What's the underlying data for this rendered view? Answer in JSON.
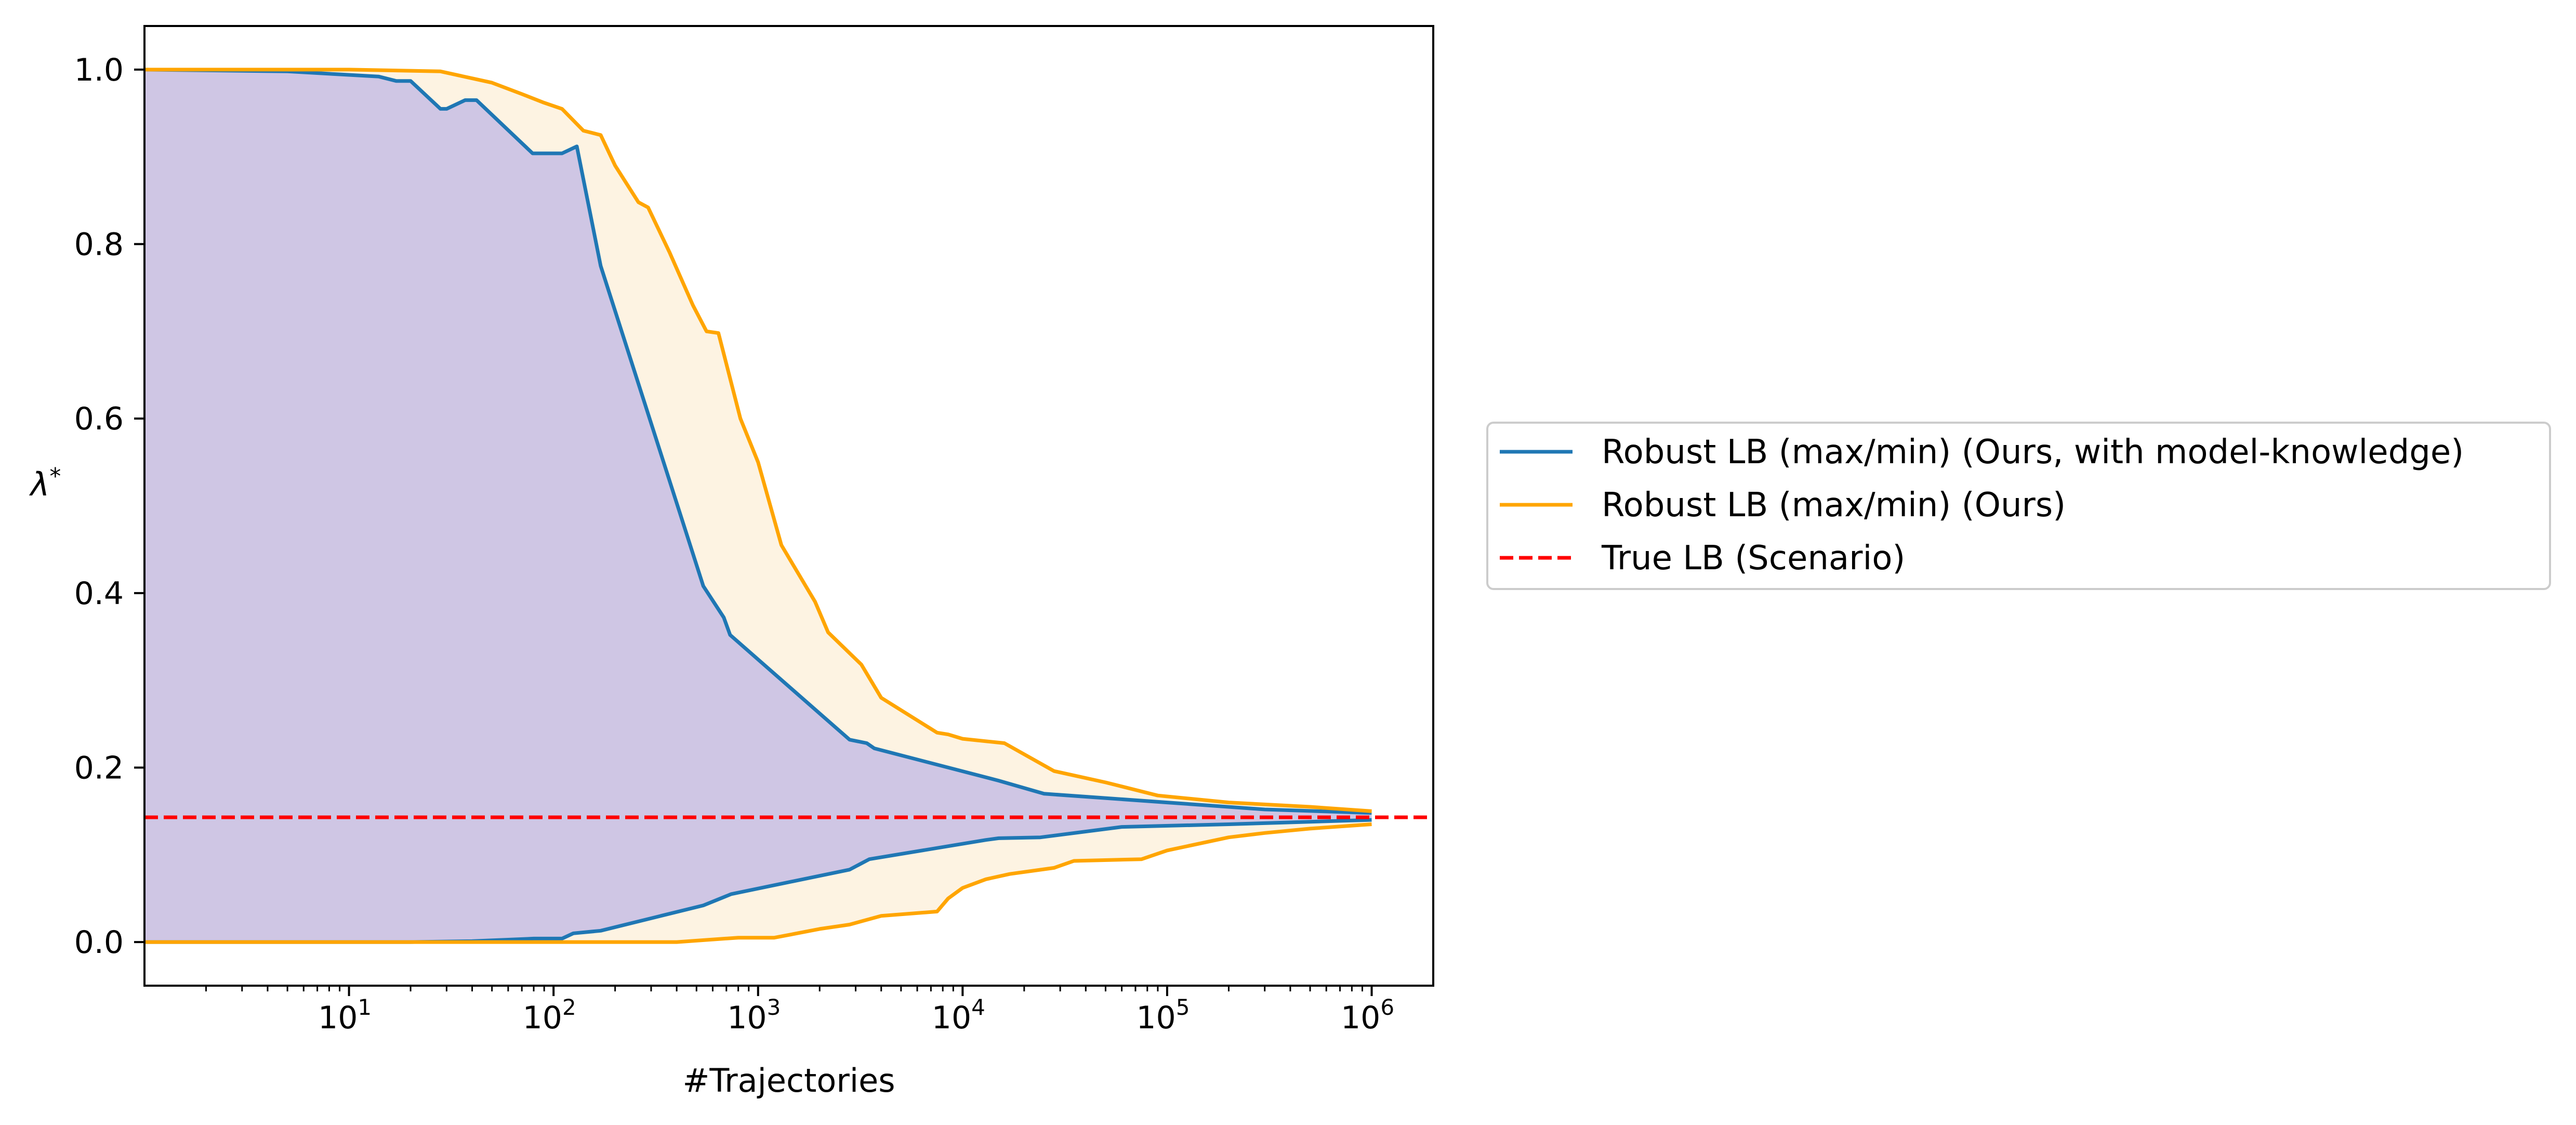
{
  "chart_data": {
    "type": "line",
    "title": "",
    "xlabel": "#Trajectories",
    "ylabel": "λ*",
    "xscale": "log",
    "xlim": [
      1.0,
      2000000
    ],
    "ylim": [
      -0.05,
      1.05
    ],
    "grid": false,
    "legend_position": "right-center, outside plot",
    "x_ticks": [
      {
        "value": 10,
        "base": "10",
        "exp": "1"
      },
      {
        "value": 100,
        "base": "10",
        "exp": "2"
      },
      {
        "value": 1000,
        "base": "10",
        "exp": "3"
      },
      {
        "value": 10000,
        "base": "10",
        "exp": "4"
      },
      {
        "value": 100000,
        "base": "10",
        "exp": "5"
      },
      {
        "value": 1000000,
        "base": "10",
        "exp": "6"
      }
    ],
    "y_ticks": [
      {
        "value": 0.0,
        "label": "0.0"
      },
      {
        "value": 0.2,
        "label": "0.2"
      },
      {
        "value": 0.4,
        "label": "0.4"
      },
      {
        "value": 0.6,
        "label": "0.6"
      },
      {
        "value": 0.8,
        "label": "0.8"
      },
      {
        "value": 1.0,
        "label": "1.0"
      }
    ],
    "series": [
      {
        "name": "Robust LB (max/min) (Ours, with model-knowledge)",
        "color": "#1f77b4",
        "fill": "#cfc6e4",
        "upper": [
          [
            1,
            1.0
          ],
          [
            5,
            0.998
          ],
          [
            14,
            0.992
          ],
          [
            17,
            0.987
          ],
          [
            20,
            0.987
          ],
          [
            28,
            0.955
          ],
          [
            30,
            0.955
          ],
          [
            37,
            0.965
          ],
          [
            42,
            0.965
          ],
          [
            79,
            0.904
          ],
          [
            110,
            0.904
          ],
          [
            130,
            0.912
          ],
          [
            170,
            0.775
          ],
          [
            540,
            0.408
          ],
          [
            680,
            0.372
          ],
          [
            730,
            0.352
          ],
          [
            2800,
            0.232
          ],
          [
            3400,
            0.228
          ],
          [
            3700,
            0.222
          ],
          [
            15000,
            0.185
          ],
          [
            25000,
            0.17
          ],
          [
            100000,
            0.16
          ],
          [
            300000,
            0.152
          ],
          [
            1000000,
            0.148
          ]
        ],
        "lower": [
          [
            1,
            0.0
          ],
          [
            20,
            0.0
          ],
          [
            40,
            0.001
          ],
          [
            80,
            0.004
          ],
          [
            110,
            0.004
          ],
          [
            125,
            0.01
          ],
          [
            170,
            0.013
          ],
          [
            540,
            0.042
          ],
          [
            740,
            0.055
          ],
          [
            2800,
            0.083
          ],
          [
            3500,
            0.095
          ],
          [
            13000,
            0.117
          ],
          [
            15000,
            0.119
          ],
          [
            24000,
            0.12
          ],
          [
            60000,
            0.132
          ],
          [
            200000,
            0.135
          ],
          [
            1000000,
            0.14
          ]
        ]
      },
      {
        "name": "Robust LB (max/min) (Ours)",
        "color": "#ffa500",
        "fill": "#fdf3e2",
        "upper": [
          [
            1,
            1.0
          ],
          [
            10,
            1.0
          ],
          [
            28,
            0.998
          ],
          [
            40,
            0.99
          ],
          [
            50,
            0.985
          ],
          [
            70,
            0.972
          ],
          [
            90,
            0.962
          ],
          [
            110,
            0.955
          ],
          [
            140,
            0.93
          ],
          [
            170,
            0.925
          ],
          [
            200,
            0.89
          ],
          [
            260,
            0.848
          ],
          [
            290,
            0.842
          ],
          [
            370,
            0.79
          ],
          [
            480,
            0.73
          ],
          [
            560,
            0.7
          ],
          [
            640,
            0.698
          ],
          [
            820,
            0.6
          ],
          [
            1000,
            0.55
          ],
          [
            1300,
            0.455
          ],
          [
            1900,
            0.39
          ],
          [
            2200,
            0.355
          ],
          [
            3200,
            0.318
          ],
          [
            4000,
            0.28
          ],
          [
            7500,
            0.24
          ],
          [
            8500,
            0.238
          ],
          [
            10000,
            0.233
          ],
          [
            16000,
            0.228
          ],
          [
            28000,
            0.196
          ],
          [
            50000,
            0.183
          ],
          [
            90000,
            0.168
          ],
          [
            200000,
            0.16
          ],
          [
            500000,
            0.155
          ],
          [
            1000000,
            0.15
          ]
        ],
        "lower": [
          [
            1,
            0.0
          ],
          [
            400,
            0.0
          ],
          [
            800,
            0.005
          ],
          [
            1200,
            0.005
          ],
          [
            1400,
            0.008
          ],
          [
            2000,
            0.015
          ],
          [
            2800,
            0.02
          ],
          [
            4000,
            0.03
          ],
          [
            7500,
            0.035
          ],
          [
            8500,
            0.05
          ],
          [
            10000,
            0.062
          ],
          [
            13000,
            0.072
          ],
          [
            17000,
            0.078
          ],
          [
            28000,
            0.085
          ],
          [
            35000,
            0.093
          ],
          [
            75000,
            0.095
          ],
          [
            100000,
            0.105
          ],
          [
            200000,
            0.12
          ],
          [
            300000,
            0.125
          ],
          [
            500000,
            0.13
          ],
          [
            1000000,
            0.135
          ]
        ]
      },
      {
        "name": "True LB (Scenario)",
        "color": "#ff0000",
        "dashed": true,
        "y": 0.143
      }
    ]
  }
}
